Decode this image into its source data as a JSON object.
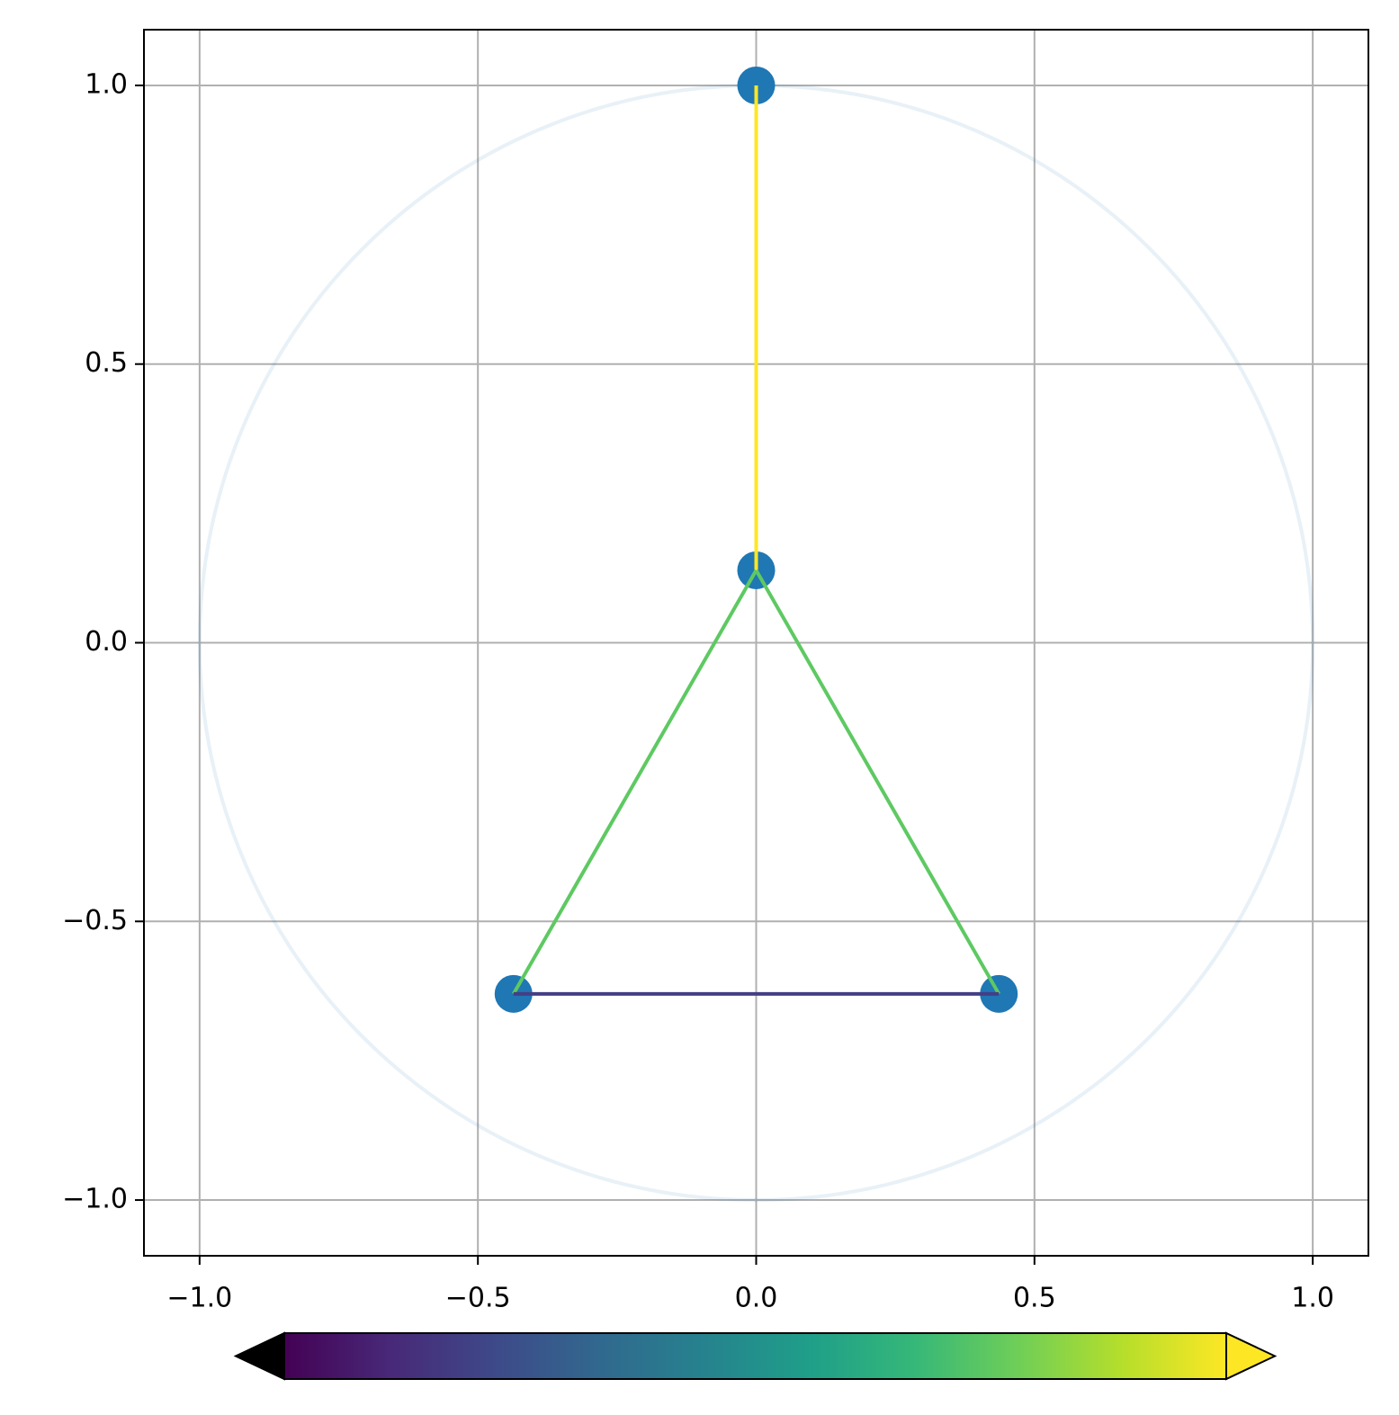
{
  "chart_data": {
    "type": "scatter",
    "x": [
      0,
      0,
      -0.436,
      0.436
    ],
    "y": [
      1,
      0.13,
      -0.63,
      -0.63
    ],
    "color": "#1f77b4",
    "edges": [
      {
        "from": 0,
        "to": 1,
        "color": "#fde725"
      },
      {
        "from": 1,
        "to": 2,
        "color": "#5ec962"
      },
      {
        "from": 1,
        "to": 3,
        "color": "#5ec962"
      },
      {
        "from": 2,
        "to": 3,
        "color": "#433e85"
      }
    ],
    "circle": {
      "radius": 1,
      "color": "#1f77b4",
      "opacity": 0.1
    },
    "xlim": [
      -1.1,
      1.1
    ],
    "ylim": [
      -1.1,
      1.1
    ],
    "xticks": [
      {
        "value": -1,
        "label": "−1.0"
      },
      {
        "value": -0.5,
        "label": "−0.5"
      },
      {
        "value": 0,
        "label": "0.0"
      },
      {
        "value": 0.5,
        "label": "0.5"
      },
      {
        "value": 1,
        "label": "1.0"
      }
    ],
    "yticks": [
      {
        "value": -1,
        "label": "−1.0"
      },
      {
        "value": -0.5,
        "label": "−0.5"
      },
      {
        "value": 0,
        "label": "0.0"
      },
      {
        "value": 0.5,
        "label": "0.5"
      },
      {
        "value": 1,
        "label": "1.0"
      }
    ],
    "grid": true,
    "colorbar": {
      "colors": [
        "#440154",
        "#482878",
        "#3e4989",
        "#31688e",
        "#26828e",
        "#1f9e89",
        "#35b779",
        "#6ece58",
        "#b5de2b",
        "#fde725"
      ],
      "extend_low_color": "#000000",
      "extend_high_color": "#fde725"
    }
  }
}
